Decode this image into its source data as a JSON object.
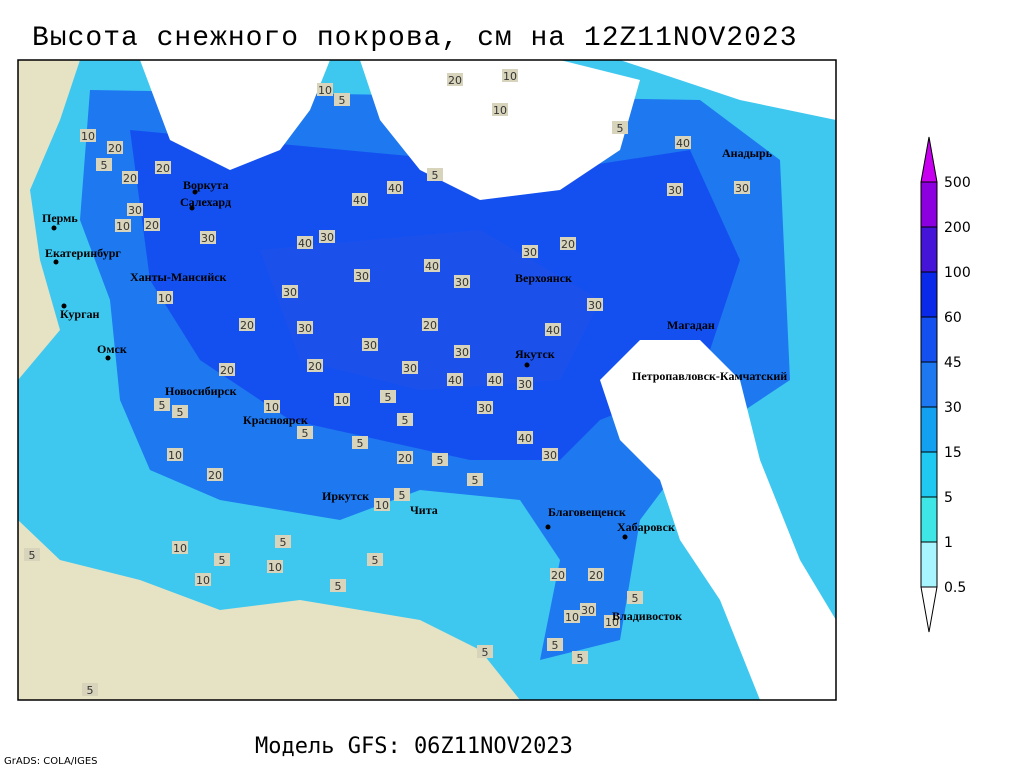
{
  "title": "Высота снежного покрова, см на 12Z11NOV2023",
  "footer": "Модель GFS: 06Z11NOV2023",
  "credit": "GrADS: COLA/IGES",
  "legend": {
    "levels": [
      0.5,
      1,
      5,
      15,
      30,
      45,
      60,
      100,
      200,
      500
    ],
    "colors": [
      "#ffffff",
      "#a8f4ff",
      "#3ee6e6",
      "#1ec8f0",
      "#12a0f0",
      "#1e78f0",
      "#1450f0",
      "#0a28e8",
      "#4414d8",
      "#8c00e0",
      "#c800f0"
    ]
  },
  "cities": [
    "Воркута",
    "Салехард",
    "Пермь",
    "Екатеринбург",
    "Ханты-Мансийск",
    "Курган",
    "Омск",
    "Новосибирск",
    "Красноярск",
    "Иркутск",
    "Чита",
    "Благовещенск",
    "Хабаровск",
    "Владивосток",
    "Якутск",
    "Верхоянск",
    "Магадан",
    "Петропавловск-Камчатский",
    "Анадырь"
  ],
  "contour_labels": [
    10,
    5,
    20,
    10,
    10,
    5,
    10,
    20,
    5,
    20,
    20,
    5,
    40,
    40,
    40,
    30,
    30,
    20,
    10,
    30,
    40,
    30,
    30,
    20,
    30,
    40,
    30,
    30,
    30,
    10,
    30,
    40,
    20,
    30,
    20,
    30,
    30,
    20,
    20,
    30,
    40,
    40,
    30,
    30,
    5,
    5,
    10,
    10,
    5,
    5,
    5,
    5,
    40,
    30,
    20,
    5,
    10,
    20,
    5,
    10,
    5,
    10,
    5,
    5,
    10,
    5,
    5,
    10,
    20,
    20,
    30,
    10,
    5,
    10,
    5,
    5,
    5,
    5,
    5
  ]
}
